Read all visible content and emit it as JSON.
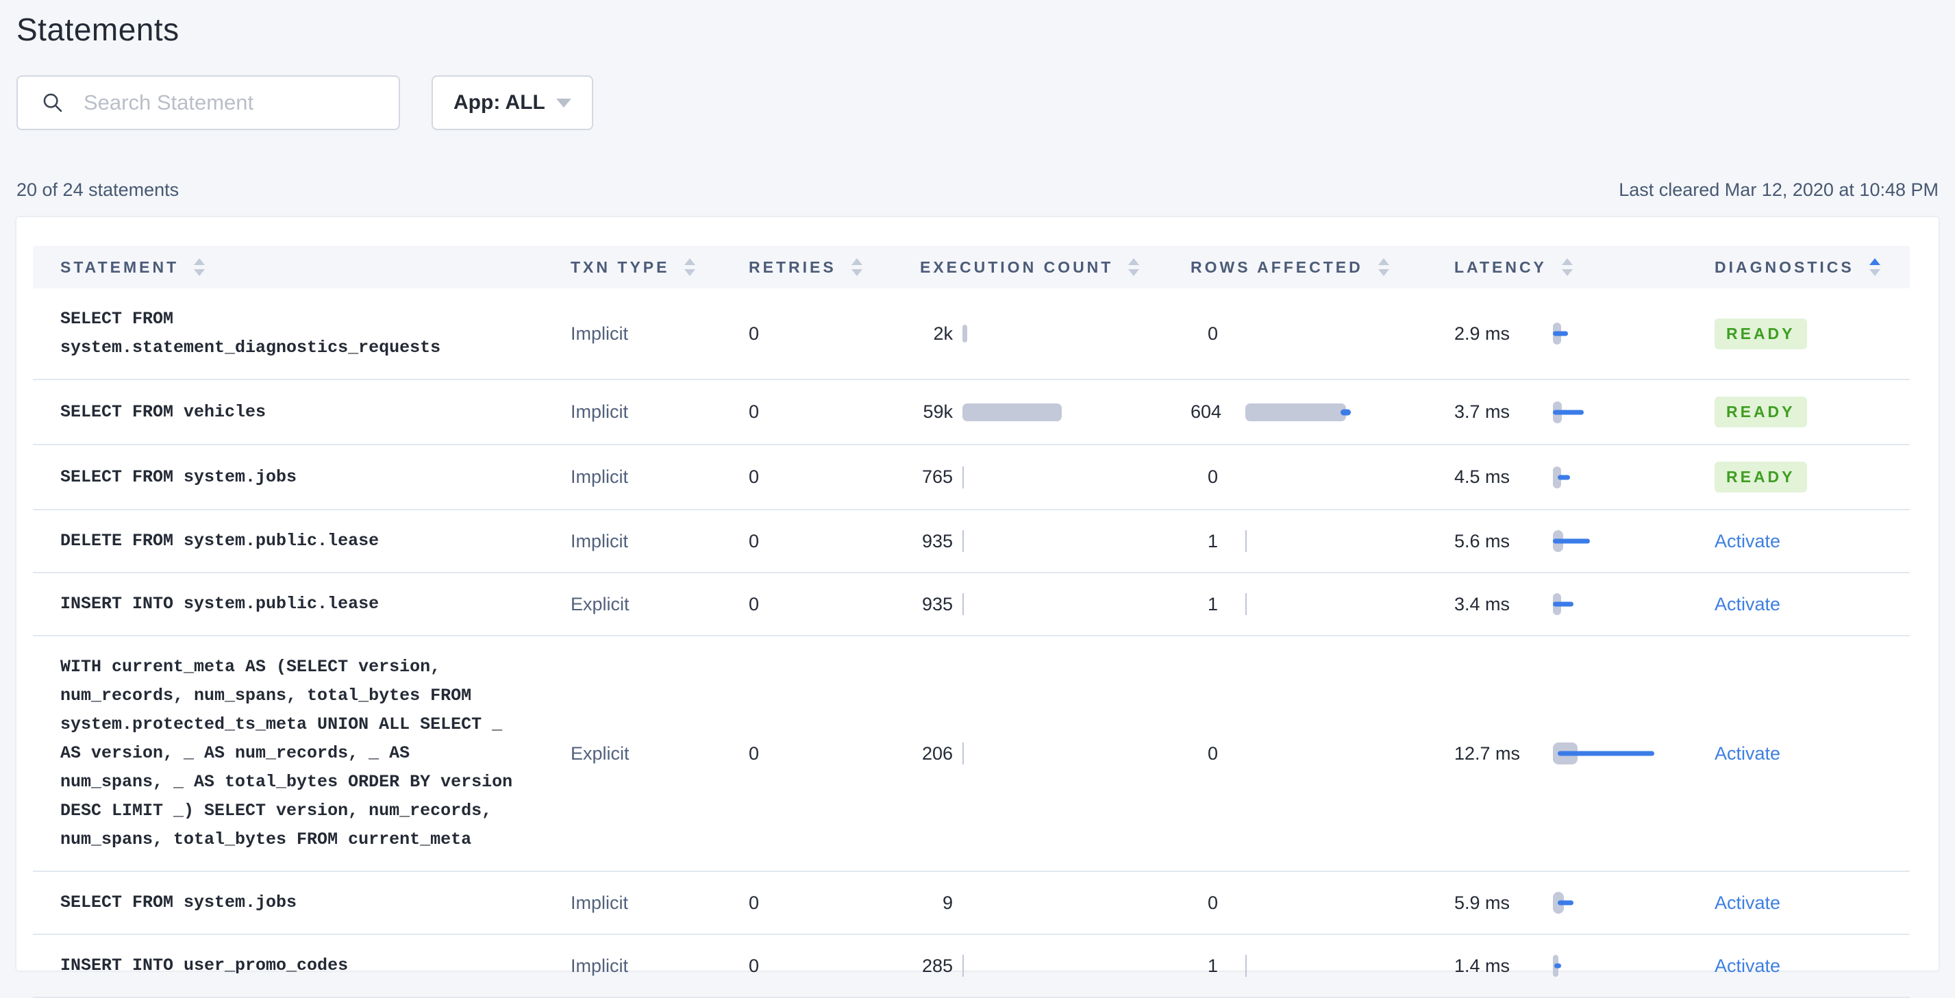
{
  "page": {
    "title": "Statements"
  },
  "toolbar": {
    "search_placeholder": "Search Statement",
    "app_filter_label": "App: ALL"
  },
  "statusbar": {
    "count_text": "20 of 24 statements",
    "last_cleared": "Last cleared Mar 12, 2020 at 10:48 PM"
  },
  "colors": {
    "accent_blue": "#3b7ce8",
    "badge_green_text": "#3f9e21",
    "badge_green_bg": "#e2f3d8",
    "bar_gray": "#c4c9d9",
    "header_text": "#4c5b77"
  },
  "table": {
    "columns": [
      {
        "label": "STATEMENT",
        "sort": "none"
      },
      {
        "label": "TXN TYPE",
        "sort": "none"
      },
      {
        "label": "RETRIES",
        "sort": "none"
      },
      {
        "label": "EXECUTION COUNT",
        "sort": "none"
      },
      {
        "label": "ROWS AFFECTED",
        "sort": "none"
      },
      {
        "label": "LATENCY",
        "sort": "none"
      },
      {
        "label": "DIAGNOSTICS",
        "sort": "asc"
      }
    ],
    "rows": [
      {
        "statement": "SELECT FROM\nsystem.statement_diagnostics_requests",
        "txn_type": "Implicit",
        "retries": "0",
        "exec_count": "2k",
        "exec_bar_w": 7,
        "rows_affected": "0",
        "rows_bar_w": 0,
        "rows_dot": false,
        "latency": "2.9 ms",
        "lat_cap_w": 12,
        "lat_bar_w": 22,
        "lat_bar_off": 0,
        "diagnostics": {
          "type": "badge",
          "label": "READY"
        }
      },
      {
        "statement": "SELECT FROM vehicles",
        "txn_type": "Implicit",
        "retries": "0",
        "exec_count": "59k",
        "exec_bar_w": 145,
        "rows_affected": "604",
        "rows_bar_w": 147,
        "rows_dot": true,
        "latency": "3.7 ms",
        "lat_cap_w": 13,
        "lat_bar_w": 45,
        "lat_bar_off": 0,
        "diagnostics": {
          "type": "badge",
          "label": "READY"
        }
      },
      {
        "statement": "SELECT FROM system.jobs",
        "txn_type": "Implicit",
        "retries": "0",
        "exec_count": "765",
        "exec_bar_w": 2,
        "rows_affected": "0",
        "rows_bar_w": 0,
        "rows_dot": false,
        "latency": "4.5 ms",
        "lat_cap_w": 12,
        "lat_bar_w": 18,
        "lat_bar_off": 7,
        "diagnostics": {
          "type": "badge",
          "label": "READY"
        }
      },
      {
        "statement": "DELETE FROM system.public.lease",
        "txn_type": "Implicit",
        "retries": "0",
        "exec_count": "935",
        "exec_bar_w": 2,
        "rows_affected": "1",
        "rows_bar_w": 2,
        "rows_dot": false,
        "latency": "5.6 ms",
        "lat_cap_w": 15,
        "lat_bar_w": 54,
        "lat_bar_off": 0,
        "diagnostics": {
          "type": "link",
          "label": "Activate"
        }
      },
      {
        "statement": "INSERT INTO system.public.lease",
        "txn_type": "Explicit",
        "retries": "0",
        "exec_count": "935",
        "exec_bar_w": 2,
        "rows_affected": "1",
        "rows_bar_w": 2,
        "rows_dot": false,
        "latency": "3.4 ms",
        "lat_cap_w": 12,
        "lat_bar_w": 30,
        "lat_bar_off": 0,
        "diagnostics": {
          "type": "link",
          "label": "Activate"
        }
      },
      {
        "statement": "WITH current_meta AS (SELECT version,\nnum_records, num_spans, total_bytes FROM\nsystem.protected_ts_meta UNION ALL SELECT _\nAS version, _ AS num_records, _ AS\nnum_spans, _ AS total_bytes ORDER BY version\nDESC LIMIT _) SELECT version, num_records,\nnum_spans, total_bytes FROM current_meta",
        "txn_type": "Explicit",
        "retries": "0",
        "exec_count": "206",
        "exec_bar_w": 2,
        "rows_affected": "0",
        "rows_bar_w": 0,
        "rows_dot": false,
        "latency": "12.7 ms",
        "lat_cap_w": 36,
        "lat_bar_w": 141,
        "lat_bar_off": 7,
        "diagnostics": {
          "type": "link",
          "label": "Activate"
        }
      },
      {
        "statement": "SELECT FROM system.jobs",
        "txn_type": "Implicit",
        "retries": "0",
        "exec_count": "9",
        "exec_bar_w": 0,
        "rows_affected": "0",
        "rows_bar_w": 0,
        "rows_dot": false,
        "latency": "5.9 ms",
        "lat_cap_w": 16,
        "lat_bar_w": 23,
        "lat_bar_off": 7,
        "diagnostics": {
          "type": "link",
          "label": "Activate"
        }
      },
      {
        "statement": "INSERT INTO user_promo_codes",
        "txn_type": "Implicit",
        "retries": "0",
        "exec_count": "285",
        "exec_bar_w": 2,
        "rows_affected": "1",
        "rows_bar_w": 2,
        "rows_dot": false,
        "latency": "1.4 ms",
        "lat_cap_w": 8,
        "lat_bar_w": 10,
        "lat_bar_off": 2,
        "diagnostics": {
          "type": "link",
          "label": "Activate"
        }
      }
    ]
  }
}
